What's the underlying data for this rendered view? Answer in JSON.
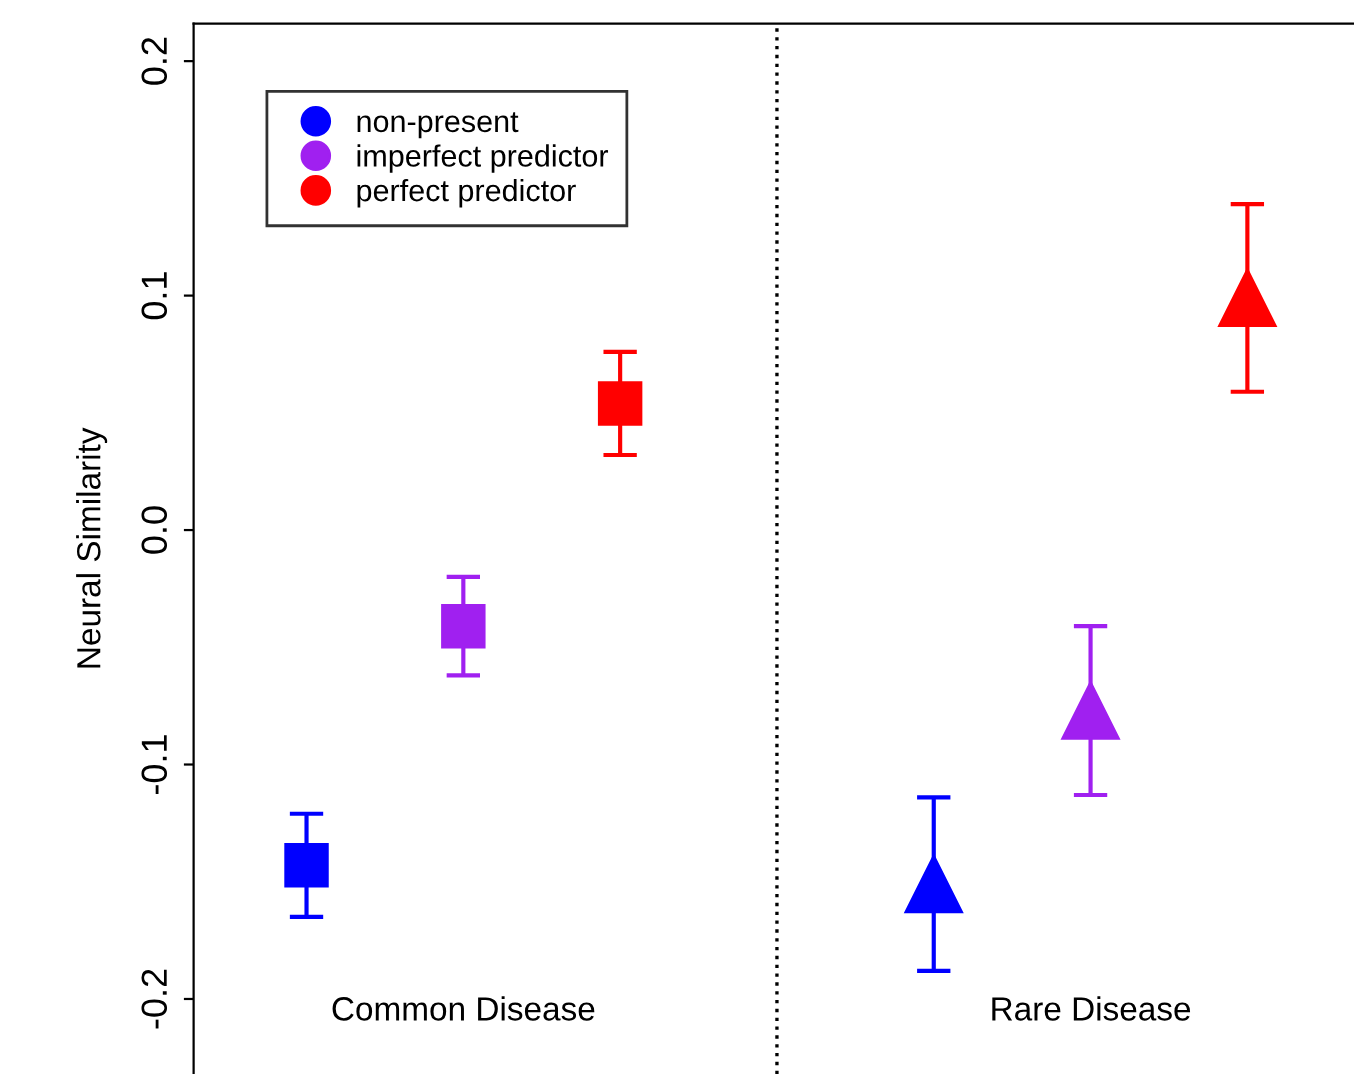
{
  "chart_data": {
    "type": "scatter",
    "ylabel": "Neural Similarity",
    "categories": [
      "Common Disease",
      "Rare Disease"
    ],
    "ylim": [
      -0.232,
      0.216
    ],
    "yticks": [
      -0.2,
      -0.1,
      {
        "value": 0,
        "label": "0.0"
      },
      0.1,
      0.2
    ],
    "series": [
      {
        "name": "non-present",
        "color": "#0000ff",
        "marker": "square",
        "values": [
          -0.143,
          null
        ],
        "errors": [
          0.022,
          null
        ]
      },
      {
        "name": "imperfect predictor",
        "color": "#a020f0",
        "marker": "square",
        "values": [
          -0.041,
          null
        ],
        "errors": [
          0.021,
          null
        ]
      },
      {
        "name": "perfect predictor",
        "color": "#ff0000",
        "marker": "square",
        "values": [
          0.054,
          null
        ],
        "errors": [
          0.022,
          null
        ]
      },
      {
        "color": "#0000ff",
        "marker": "triangle",
        "values": [
          null,
          -0.151
        ],
        "errors": [
          null,
          0.037
        ]
      },
      {
        "color": "#a020f0",
        "marker": "triangle",
        "values": [
          null,
          -0.077
        ],
        "errors": [
          null,
          0.036
        ]
      },
      {
        "color": "#ff0000",
        "marker": "triangle",
        "values": [
          null,
          0.099
        ],
        "errors": [
          null,
          0.04
        ]
      }
    ],
    "legend": "top left",
    "grid": false
  }
}
